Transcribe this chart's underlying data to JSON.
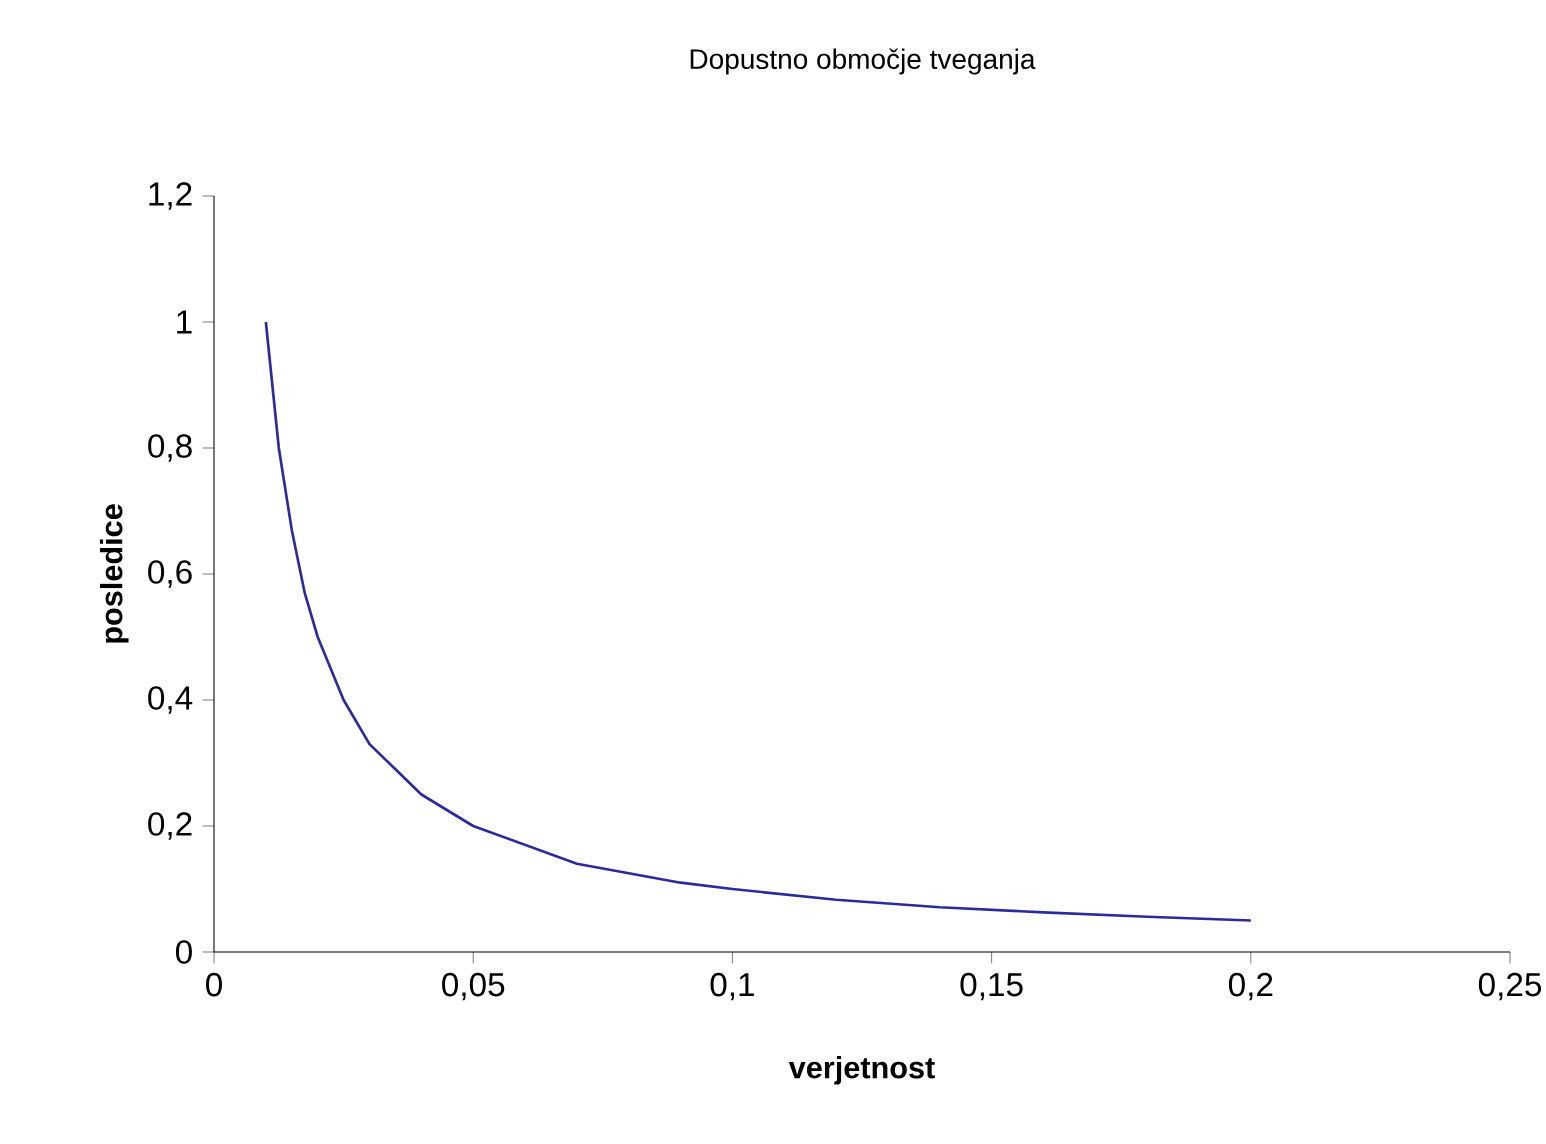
{
  "chart_data": {
    "type": "line",
    "title": "Dopustno območje tveganja",
    "xlabel": "verjetnost",
    "ylabel": "posledice",
    "series": [
      {
        "color": "#2b2b9c",
        "x": [
          0.01,
          0.0125,
          0.015,
          0.0175,
          0.02,
          0.025,
          0.03,
          0.035,
          0.04,
          0.05,
          0.06,
          0.07,
          0.08,
          0.09,
          0.1,
          0.12,
          0.14,
          0.16,
          0.18,
          0.2
        ],
        "values": [
          1.0,
          0.8,
          0.67,
          0.57,
          0.5,
          0.4,
          0.33,
          0.29,
          0.25,
          0.2,
          0.17,
          0.14,
          0.125,
          0.11,
          0.1,
          0.083,
          0.071,
          0.063,
          0.056,
          0.05
        ]
      }
    ],
    "xlim": [
      0,
      0.25
    ],
    "ylim": [
      0,
      1.2
    ],
    "xticks": [
      0,
      {
        "value": 0.05,
        "label": "0,05"
      },
      {
        "value": 0.1,
        "label": "0,1"
      },
      {
        "value": 0.15,
        "label": "0,15"
      },
      {
        "value": 0.2,
        "label": "0,2"
      },
      {
        "value": 0.25,
        "label": "0,25"
      }
    ],
    "yticks": [
      0,
      {
        "value": 0.2,
        "label": "0,2"
      },
      {
        "value": 0.4,
        "label": "0,4"
      },
      {
        "value": 0.6,
        "label": "0,6"
      },
      {
        "value": 0.8,
        "label": "0,8"
      },
      1,
      {
        "value": 1.2,
        "label": "1,2"
      }
    ],
    "grid": false,
    "marker": "none",
    "line_style": "solid"
  }
}
